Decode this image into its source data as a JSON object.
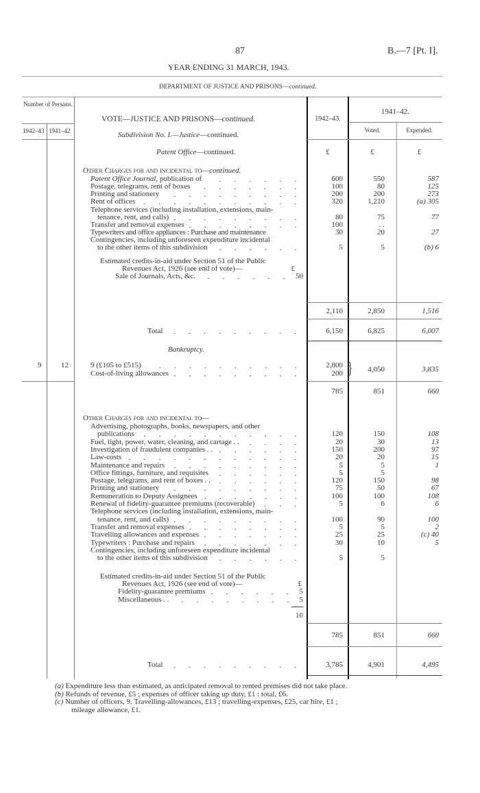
{
  "header": {
    "page_number": "87",
    "reference": "B.—7 [Pt. I].",
    "year": "YEAR ENDING 31 MARCH, 1943.",
    "department": "DEPARTMENT OF JUSTICE AND PRISONS—",
    "department_cont": "continued."
  },
  "table_head": {
    "persons": "Number of Persons.",
    "persons_1942": "1942–43",
    "persons_1941": "1941–42",
    "vote": "VOTE—JUSTICE AND PRISONS—",
    "vote_cont": "continued.",
    "col_1942": "1942–43.",
    "col_1941": "1941–42.",
    "voted": "Voted.",
    "expended": "Expended.",
    "subdivision_italic": "Subdivision No. I.—Justice",
    "subdivision_cont": "—continued.",
    "patent_italic": "Patent Office",
    "patent_cont": "—continued.",
    "currency": "£"
  },
  "patent": {
    "heading": "Other Charges for and incidental to—",
    "heading_cont": "continued.",
    "items": [
      {
        "label_italic": "Patent Office Journal",
        "label": ", publication of",
        "a": "600",
        "b": "550",
        "c": "587"
      },
      {
        "label": "Postage, telegrams, rent of boxes",
        "a": "100",
        "b": "80",
        "c": "125"
      },
      {
        "label": "Printing and stationery",
        "a": "200",
        "b": "200",
        "c": "273"
      },
      {
        "label": "Rent of offices",
        "a": "320",
        "b": "1,210",
        "c": "(a) 305"
      },
      {
        "label": "Telephone services (including installation, extensions, main-",
        "label2": "tenance, rent, and calls)",
        "a": "80",
        "b": "75",
        "c": "77"
      },
      {
        "label": "Transfer and removal expenses",
        "a": "100",
        "b": ". .",
        "c": ""
      },
      {
        "label": "Typewriters and office appliances :  Purchase and maintenance",
        "a": "30",
        "b": "20",
        "c": "27"
      },
      {
        "label": "Contingencies, including unforeseen expenditure incidental",
        "label2": "to the other items of this subdivision",
        "a": "5",
        "b": "5",
        "c": "(b) 6"
      }
    ],
    "credits_line1": "Estimated credits-in-aid under Section 51 of the Public",
    "credits_line2": "Revenues Act, 1926 (see end of vote)—",
    "credits_currency": "£",
    "credits": [
      {
        "label": "Sale of Journals, Acts, &c.",
        "value": "50"
      }
    ],
    "subtotal": {
      "a": "2,110",
      "b": "2,850",
      "c": "1,516"
    },
    "total": {
      "label": "Total",
      "a": "6,150",
      "b": "6,825",
      "c": "6,007"
    }
  },
  "bankruptcy": {
    "title": "Bankruptcy.",
    "persons_1942": "9",
    "persons_1941": "12",
    "salaries": {
      "label": "9 (£105 to £515)",
      "a": "2,800"
    },
    "col": {
      "label": "Cost-of-living allowances",
      "a": "200"
    },
    "combined_voted": "4,050",
    "combined_expended": "3,835",
    "subtotal": {
      "a": "785",
      "b": "851",
      "c": "660"
    },
    "heading": "Other Charges for and incidental to—",
    "items": [
      {
        "label": "Advertising, photographs, books, newspapers, and other",
        "label2": "publications",
        "a": "120",
        "b": "150",
        "c": "108"
      },
      {
        "label": "Fuel, light, power, water, cleaning, and cartage . .",
        "a": "20",
        "b": "30",
        "c": "13"
      },
      {
        "label": "Investigation of fraudulent companies . .",
        "a": "150",
        "b": "200",
        "c": "97"
      },
      {
        "label": "Law-costs",
        "a": "20",
        "b": "20",
        "c": "15"
      },
      {
        "label": "Maintenance and repairs",
        "a": "5",
        "b": "5",
        "c": "1"
      },
      {
        "label": "Office fittings, furniture, and requisites",
        "a": "5",
        "b": "5",
        "c": ""
      },
      {
        "label": "Postage, telegrams, and rent of boxes . .",
        "a": "120",
        "b": "150",
        "c": "98"
      },
      {
        "label": "Printing and stationery",
        "a": "75",
        "b": "50",
        "c": "67"
      },
      {
        "label": "Remuneration to Deputy Assignees",
        "a": "100",
        "b": "100",
        "c": "108"
      },
      {
        "label": "Renewal of fidelity-guarantee premiums (recoverable)",
        "a": "5",
        "b": "6",
        "c": "6"
      },
      {
        "label": "Telephone services (including installation, extensions, main-",
        "label2": "tenance, rent, and calls)",
        "a": "100",
        "b": "90",
        "c": "100"
      },
      {
        "label": "Transfer and removal expenses",
        "a": "5",
        "b": "5",
        "c": "2"
      },
      {
        "label": "Travelling allowances and expenses",
        "a": "25",
        "b": "25",
        "c": "(c) 40"
      },
      {
        "label": "Typewriters :  Purchase and repairs",
        "a": "30",
        "b": "10",
        "c": "5"
      },
      {
        "label": "Contingencies, including unforeseen expenditure incidental",
        "label2": "to the other items of this subdivision",
        "a": "5",
        "b": "5",
        "c": ""
      }
    ],
    "credits_line1": "Estimated credits-in-aid under Section 51 of the Public",
    "credits_line2": "Revenues Act, 1926 (see end of vote)—",
    "credits_currency": "£",
    "credits": [
      {
        "label": "Fidelity-guarantee premiums",
        "value": "5"
      },
      {
        "label": "Miscellaneous . .",
        "value": "5"
      }
    ],
    "credits_total": "10",
    "total": {
      "label": "Total",
      "a": "3,785",
      "b": "4,901",
      "c": "4,495"
    }
  },
  "footnotes": [
    {
      "mark": "(a)",
      "text": "Expenditure less than estimated, as anticipated removal to rented premises did not take place."
    },
    {
      "mark": "(b)",
      "text": "Refunds of revenue, £5 ;  expenses of officer taking up duty, £1 :  total, £6."
    },
    {
      "mark": "(c)",
      "text": "Number of officers, 9.  Travelling-allowances, £13 ;  travelling-expenses, £25, car hire, £1 ;",
      "text2": "mileage allowance, £1."
    }
  ]
}
